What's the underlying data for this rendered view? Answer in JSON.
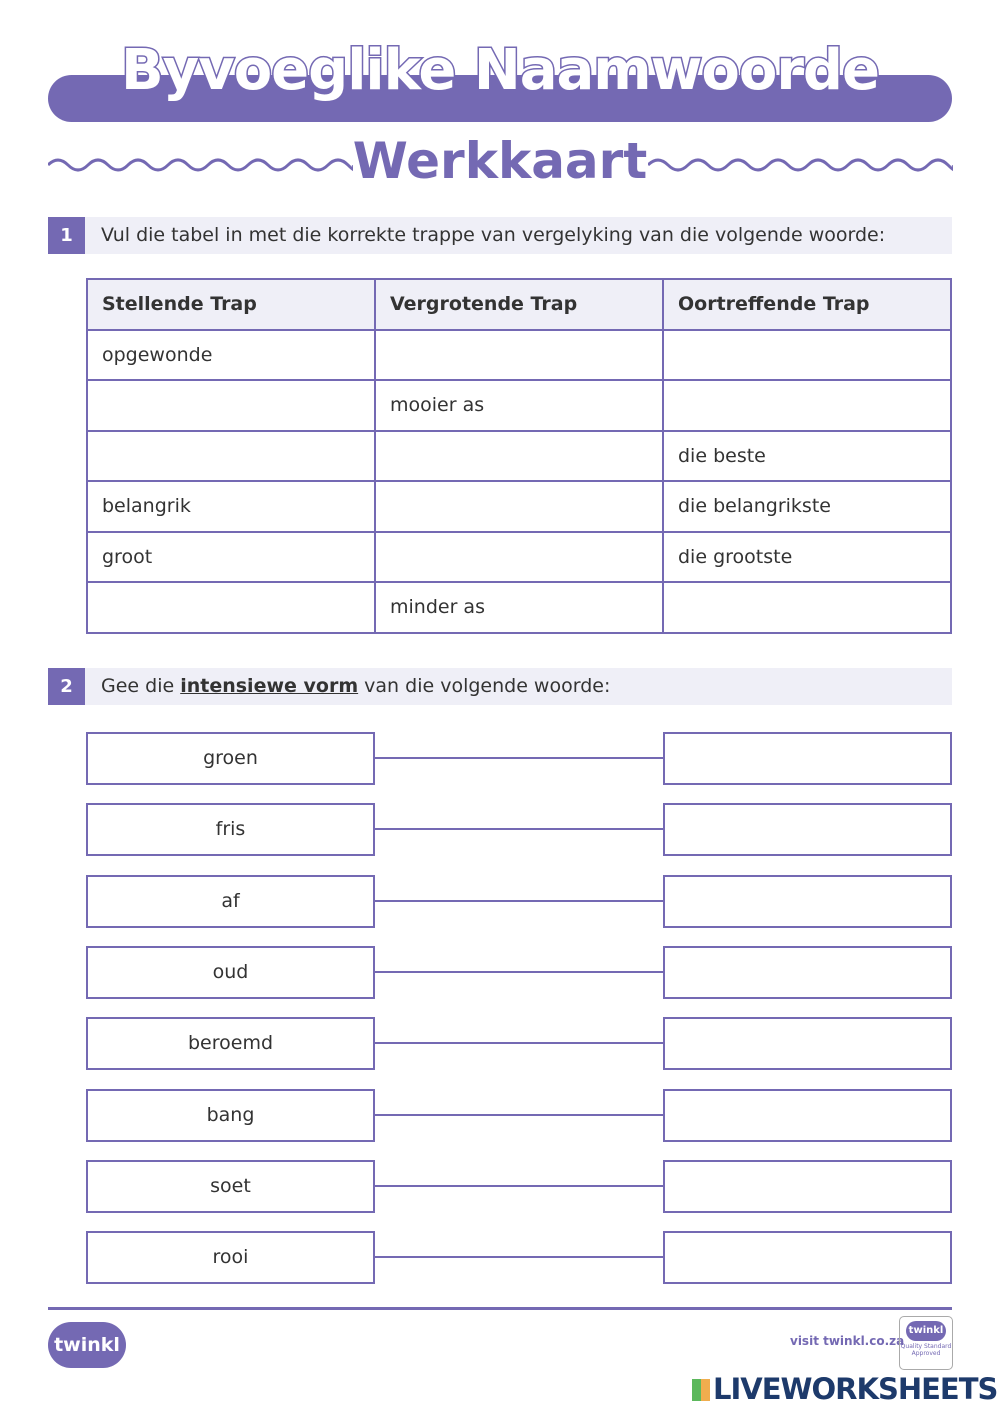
{
  "header": {
    "title": "Byvoeglike Naamwoorde",
    "subtitle": "Werkkaart"
  },
  "q1": {
    "number": "1",
    "text": "Vul die tabel in met die korrekte trappe van vergelyking van die volgende woorde:",
    "columns": [
      "Stellende Trap",
      "Vergrotende Trap",
      "Oortreffende Trap"
    ],
    "rows": [
      [
        "opgewonde",
        "",
        ""
      ],
      [
        "",
        "mooier as",
        ""
      ],
      [
        "",
        "",
        "die beste"
      ],
      [
        "belangrik",
        "",
        "die belangrikste"
      ],
      [
        "groot",
        "",
        "die grootste"
      ],
      [
        "",
        "minder as",
        ""
      ]
    ]
  },
  "q2": {
    "number": "2",
    "text_before": "Gee die ",
    "text_bold": "intensiewe vorm",
    "text_after": " van die volgende woorde:",
    "words": [
      "groen",
      "fris",
      "af",
      "oud",
      "beroemd",
      "bang",
      "soet",
      "rooi"
    ]
  },
  "footer": {
    "logo": "twinkl",
    "visit": "visit twinkl.co.za",
    "badge_logo": "twinkl",
    "badge_text": "Quality Standard Approved",
    "watermark": "LIVEWORKSHEETS"
  },
  "colors": {
    "accent": "#7469b3",
    "light": "#efeff7"
  }
}
